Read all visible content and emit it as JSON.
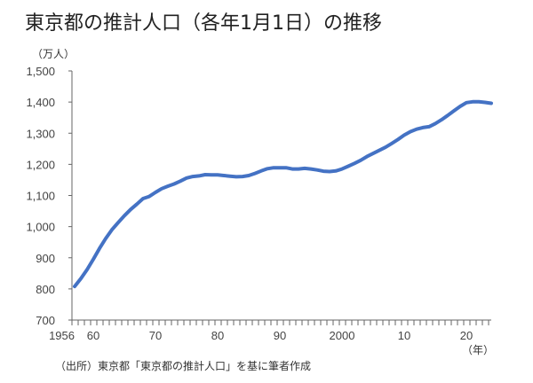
{
  "title": "東京都の推計人口（各年1月1日）の推移",
  "source": "（出所）東京都「東京都の推計人口」を基に筆者作成",
  "chart_data": {
    "type": "line",
    "title": "東京都の推計人口（各年1月1日）の推移",
    "ylabel": "（万人）",
    "xlabel": "（年）",
    "ylim": [
      700,
      1500
    ],
    "xlim": [
      1956,
      2023
    ],
    "y_ticks": [
      700,
      800,
      900,
      1000,
      1100,
      1200,
      1300,
      1400,
      1500
    ],
    "y_tick_labels": [
      "700",
      "800",
      "900",
      "1,000",
      "1,100",
      "1,200",
      "1,300",
      "1,400",
      "1,500"
    ],
    "x_ticks": [
      1956,
      1960,
      1970,
      1980,
      1990,
      2000,
      2010,
      2020
    ],
    "x_tick_labels": [
      "1956",
      "60",
      "70",
      "80",
      "90",
      "2000",
      "10",
      "20"
    ],
    "grid": false,
    "line_color": "#4472C4",
    "x": [
      1956,
      1957,
      1958,
      1959,
      1960,
      1961,
      1962,
      1963,
      1964,
      1965,
      1966,
      1967,
      1968,
      1969,
      1970,
      1971,
      1972,
      1973,
      1974,
      1975,
      1976,
      1977,
      1978,
      1979,
      1980,
      1981,
      1982,
      1983,
      1984,
      1985,
      1986,
      1987,
      1988,
      1989,
      1990,
      1991,
      1992,
      1993,
      1994,
      1995,
      1996,
      1997,
      1998,
      1999,
      2000,
      2001,
      2002,
      2003,
      2004,
      2005,
      2006,
      2007,
      2008,
      2009,
      2010,
      2011,
      2012,
      2013,
      2014,
      2015,
      2016,
      2017,
      2018,
      2019,
      2020,
      2021,
      2022,
      2023
    ],
    "values": [
      808,
      833,
      862,
      895,
      930,
      962,
      990,
      1013,
      1035,
      1055,
      1072,
      1090,
      1097,
      1110,
      1122,
      1130,
      1137,
      1146,
      1156,
      1161,
      1163,
      1167,
      1166,
      1166,
      1164,
      1162,
      1160,
      1161,
      1164,
      1171,
      1179,
      1186,
      1189,
      1189,
      1189,
      1185,
      1185,
      1187,
      1185,
      1182,
      1178,
      1177,
      1179,
      1185,
      1194,
      1203,
      1213,
      1225,
      1235,
      1245,
      1255,
      1267,
      1280,
      1294,
      1305,
      1313,
      1318,
      1321,
      1331,
      1343,
      1357,
      1372,
      1386,
      1398,
      1401,
      1401,
      1399,
      1396
    ]
  }
}
